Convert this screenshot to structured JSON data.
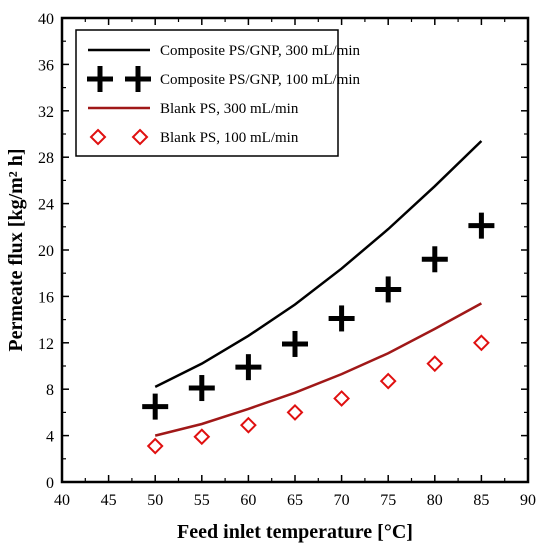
{
  "chart_data": {
    "type": "line",
    "xlabel": "Feed inlet temperature [°C]",
    "ylabel": "Permeate flux [kg/m² h]",
    "xlim": [
      40,
      90
    ],
    "ylim": [
      0,
      40
    ],
    "xticks": [
      40,
      45,
      50,
      55,
      60,
      65,
      70,
      75,
      80,
      85,
      90
    ],
    "yticks": [
      0,
      4,
      8,
      12,
      16,
      20,
      24,
      28,
      32,
      36,
      40
    ],
    "grid": false,
    "legend_position": "top-left",
    "series": [
      {
        "name": "Composite PS/GNP, 300 mL/min",
        "style": "line",
        "color": "#000000",
        "x": [
          50,
          55,
          60,
          65,
          70,
          75,
          80,
          85
        ],
        "y": [
          8.2,
          10.2,
          12.6,
          15.3,
          18.4,
          21.8,
          25.5,
          29.4
        ]
      },
      {
        "name": "Composite PS/GNP, 100 mL/min",
        "style": "plus",
        "color": "#000000",
        "x": [
          50,
          55,
          60,
          65,
          70,
          75,
          80,
          85
        ],
        "y": [
          6.5,
          8.1,
          9.9,
          11.9,
          14.1,
          16.6,
          19.2,
          22.1
        ]
      },
      {
        "name": "Blank PS, 300 mL/min",
        "style": "line",
        "color": "#a01818",
        "x": [
          50,
          55,
          60,
          65,
          70,
          75,
          80,
          85
        ],
        "y": [
          4.0,
          5.0,
          6.3,
          7.7,
          9.3,
          11.1,
          13.2,
          15.4
        ]
      },
      {
        "name": "Blank PS, 100 mL/min",
        "style": "diamond",
        "color": "#e01010",
        "x": [
          50,
          55,
          60,
          65,
          70,
          75,
          80,
          85
        ],
        "y": [
          3.1,
          3.9,
          4.9,
          6.0,
          7.2,
          8.7,
          10.2,
          12.0
        ]
      }
    ]
  }
}
